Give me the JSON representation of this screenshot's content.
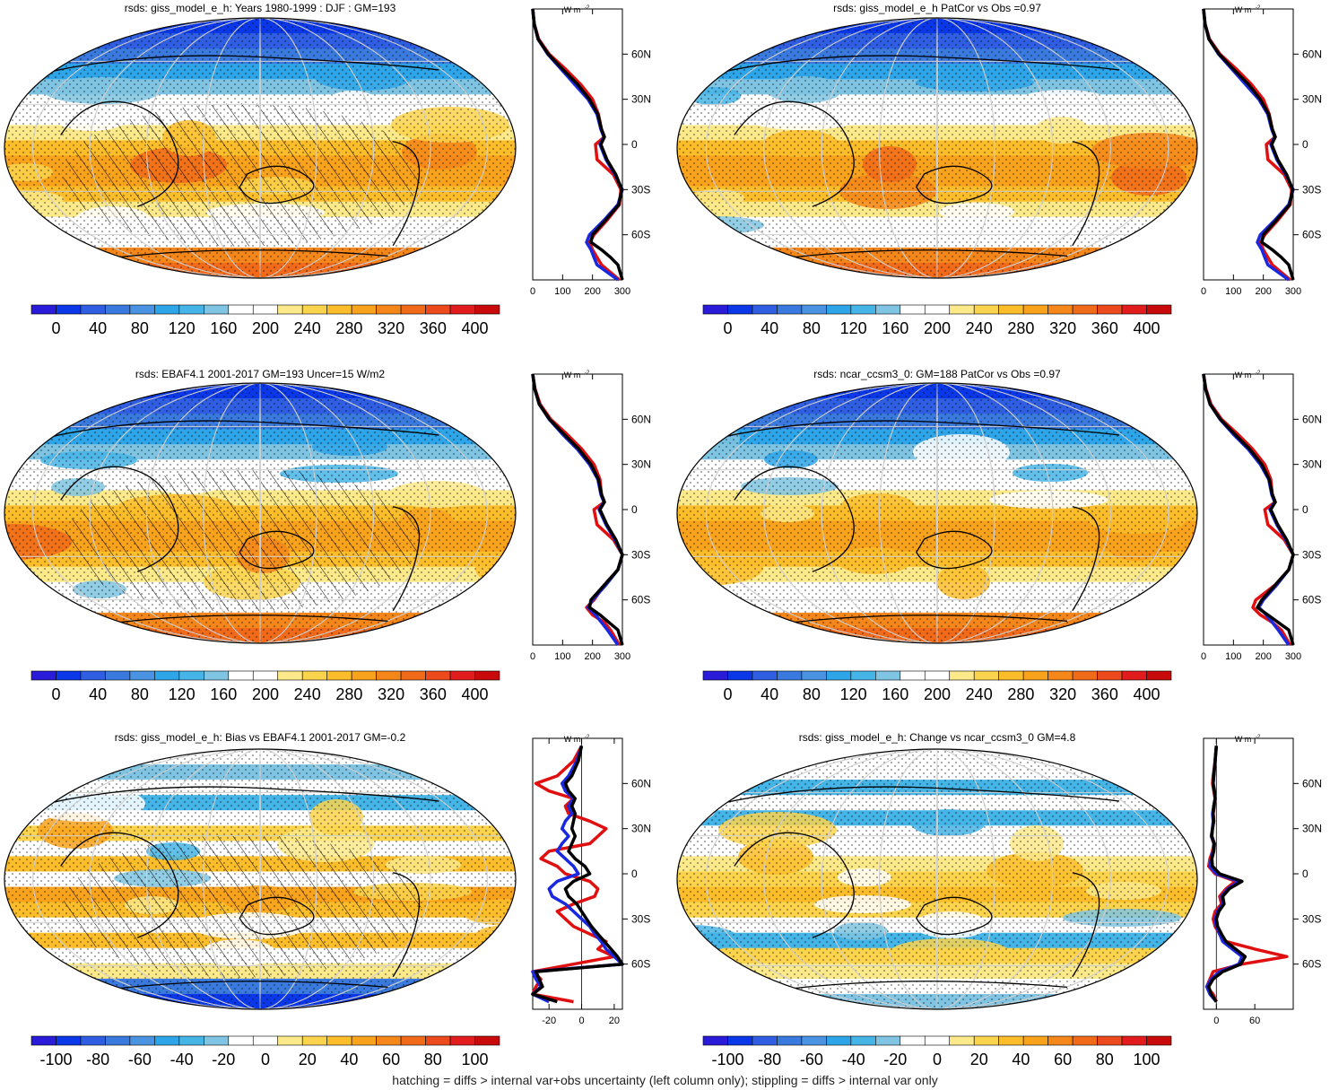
{
  "footer_note": "hatching = diffs > internal var+obs uncertainty (left column only); stippling = diffs > internal var only",
  "units_label": "W m",
  "units_exp": "-2",
  "colors": {
    "scale": [
      "#2a1bd8",
      "#0a38e8",
      "#2f5ee2",
      "#3a7ade",
      "#4a92e2",
      "#2ea5e8",
      "#45b4e6",
      "#7fc4e2",
      "#ffffff",
      "#ffffff",
      "#fce98a",
      "#fbd34c",
      "#fbbd2a",
      "#f9a21c",
      "#f5861a",
      "#f16a1a",
      "#ec4a1c",
      "#e21c1c",
      "#c80a0a"
    ],
    "obs": "#e01010",
    "model": "#1a28e0",
    "ref": "#000000"
  },
  "chart_data": [
    {
      "type": "heatmap",
      "title": "rsds: giss_model_e_h: Years 1980-1999 : DJF : GM=193",
      "colorbar_ticks": [
        "0",
        "40",
        "80",
        "120",
        "160",
        "200",
        "240",
        "280",
        "320",
        "360",
        "400"
      ],
      "zonal_profile": {
        "xticks": [
          "0",
          "100",
          "200",
          "300"
        ],
        "xlim": [
          0,
          300
        ],
        "yticks": [
          "60N",
          "30N",
          "0",
          "30S",
          "60S"
        ],
        "lat": [
          90,
          80,
          70,
          60,
          50,
          40,
          30,
          20,
          10,
          5,
          0,
          -10,
          -20,
          -30,
          -40,
          -50,
          -60,
          -65,
          -70,
          -75,
          -80,
          -90
        ],
        "obs": [
          0,
          5,
          20,
          55,
          110,
          160,
          200,
          220,
          230,
          240,
          210,
          215,
          270,
          295,
          290,
          250,
          205,
          190,
          200,
          215,
          230,
          290
        ],
        "model": [
          0,
          5,
          18,
          50,
          95,
          140,
          185,
          215,
          228,
          238,
          225,
          245,
          275,
          300,
          285,
          240,
          190,
          180,
          195,
          205,
          215,
          285
        ],
        "ref": [
          0,
          5,
          18,
          52,
          100,
          150,
          190,
          218,
          230,
          240,
          228,
          248,
          278,
          298,
          288,
          245,
          200,
          195,
          230,
          260,
          285,
          300
        ]
      }
    },
    {
      "type": "heatmap",
      "title": "rsds: giss_model_e_h PatCor vs Obs =0.97",
      "colorbar_ticks": [
        "0",
        "40",
        "80",
        "120",
        "160",
        "200",
        "240",
        "280",
        "320",
        "360",
        "400"
      ],
      "zonal_profile": {
        "xticks": [
          "0",
          "100",
          "200",
          "300"
        ],
        "xlim": [
          0,
          300
        ],
        "yticks": [
          "60N",
          "30N",
          "0",
          "30S",
          "60S"
        ],
        "lat": [
          90,
          80,
          70,
          60,
          50,
          40,
          30,
          20,
          10,
          5,
          0,
          -10,
          -20,
          -30,
          -40,
          -50,
          -60,
          -65,
          -70,
          -75,
          -80,
          -90
        ],
        "obs": [
          0,
          5,
          20,
          55,
          110,
          160,
          200,
          220,
          230,
          240,
          210,
          215,
          270,
          295,
          290,
          250,
          205,
          190,
          200,
          215,
          230,
          290
        ],
        "model": [
          0,
          5,
          18,
          50,
          95,
          140,
          185,
          215,
          228,
          238,
          225,
          245,
          275,
          300,
          285,
          240,
          190,
          180,
          195,
          205,
          215,
          285
        ],
        "ref": [
          0,
          5,
          18,
          52,
          100,
          150,
          190,
          218,
          230,
          240,
          228,
          248,
          278,
          298,
          288,
          245,
          200,
          195,
          230,
          260,
          285,
          300
        ]
      }
    },
    {
      "type": "heatmap",
      "title": "rsds: EBAF4.1 2001-2017 GM=193 Uncer=15 W/m2",
      "colorbar_ticks": [
        "0",
        "40",
        "80",
        "120",
        "160",
        "200",
        "240",
        "280",
        "320",
        "360",
        "400"
      ],
      "zonal_profile": {
        "xticks": [
          "0",
          "100",
          "200",
          "300"
        ],
        "xlim": [
          0,
          300
        ],
        "yticks": [
          "60N",
          "30N",
          "0",
          "30S",
          "60S"
        ],
        "lat": [
          90,
          80,
          70,
          60,
          50,
          40,
          30,
          20,
          10,
          5,
          0,
          -10,
          -20,
          -30,
          -40,
          -50,
          -60,
          -65,
          -70,
          -75,
          -80,
          -90
        ],
        "obs": [
          0,
          8,
          25,
          60,
          115,
          165,
          205,
          225,
          230,
          240,
          205,
          215,
          270,
          300,
          285,
          240,
          205,
          180,
          200,
          240,
          260,
          290
        ],
        "model": [
          0,
          7,
          22,
          55,
          100,
          150,
          190,
          218,
          228,
          238,
          222,
          245,
          275,
          300,
          285,
          245,
          200,
          185,
          210,
          230,
          250,
          285
        ],
        "ref": [
          0,
          7,
          22,
          56,
          105,
          155,
          195,
          220,
          230,
          240,
          225,
          248,
          278,
          300,
          285,
          240,
          195,
          190,
          225,
          255,
          285,
          300
        ]
      }
    },
    {
      "type": "heatmap",
      "title": "rsds: ncar_ccsm3_0: GM=188 PatCor vs Obs =0.97",
      "colorbar_ticks": [
        "0",
        "40",
        "80",
        "120",
        "160",
        "200",
        "240",
        "280",
        "320",
        "360",
        "400"
      ],
      "zonal_profile": {
        "xticks": [
          "0",
          "100",
          "200",
          "300"
        ],
        "xlim": [
          0,
          300
        ],
        "yticks": [
          "60N",
          "30N",
          "0",
          "30S",
          "60S"
        ],
        "lat": [
          90,
          80,
          70,
          60,
          50,
          40,
          30,
          20,
          10,
          5,
          0,
          -10,
          -20,
          -30,
          -40,
          -50,
          -60,
          -65,
          -70,
          -75,
          -80,
          -90
        ],
        "obs": [
          0,
          8,
          25,
          60,
          115,
          165,
          205,
          225,
          230,
          240,
          205,
          215,
          270,
          300,
          285,
          240,
          175,
          165,
          190,
          230,
          260,
          290
        ],
        "model": [
          0,
          7,
          22,
          55,
          100,
          150,
          190,
          218,
          228,
          238,
          222,
          245,
          275,
          300,
          285,
          245,
          200,
          185,
          210,
          230,
          250,
          285
        ],
        "ref": [
          0,
          7,
          22,
          56,
          105,
          155,
          195,
          220,
          230,
          240,
          225,
          248,
          278,
          300,
          285,
          240,
          195,
          180,
          215,
          250,
          285,
          300
        ]
      }
    },
    {
      "type": "heatmap",
      "title": "rsds: giss_model_e_h: Bias vs EBAF4.1 2001-2017 GM=-0.2",
      "colorbar_ticks": [
        "-100",
        "-80",
        "-60",
        "-40",
        "-20",
        "0",
        "20",
        "40",
        "60",
        "80",
        "100"
      ],
      "zonal_profile": {
        "xticks": [
          "-20",
          "0",
          "20"
        ],
        "xlim": [
          -30,
          25
        ],
        "yticks": [
          "60N",
          "30N",
          "0",
          "30S",
          "60S"
        ],
        "lat": [
          85,
          75,
          65,
          60,
          55,
          50,
          45,
          40,
          35,
          30,
          25,
          20,
          15,
          10,
          5,
          0,
          -5,
          -10,
          -15,
          -20,
          -25,
          -30,
          -35,
          -40,
          -45,
          -50,
          -55,
          -60,
          -65,
          -70,
          -75,
          -80,
          -85
        ],
        "obs": [
          0,
          -5,
          -15,
          -28,
          -20,
          -5,
          -10,
          -8,
          5,
          15,
          10,
          5,
          -20,
          -25,
          -15,
          -10,
          5,
          10,
          8,
          -5,
          -15,
          -10,
          -5,
          5,
          15,
          10,
          20,
          -5,
          -30,
          -25,
          -28,
          -30,
          -5
        ],
        "model": [
          0,
          -3,
          -8,
          -12,
          -10,
          -5,
          -8,
          -6,
          -10,
          -12,
          -8,
          -12,
          -15,
          -10,
          -5,
          -2,
          -15,
          -20,
          -18,
          -10,
          -5,
          0,
          5,
          8,
          12,
          15,
          20,
          25,
          -30,
          -28,
          -25,
          -30,
          -20
        ],
        "ref": [
          0,
          -2,
          -6,
          -10,
          -8,
          -4,
          -6,
          -4,
          -5,
          -6,
          -4,
          -6,
          -8,
          -4,
          2,
          5,
          -5,
          -10,
          -8,
          -3,
          0,
          3,
          6,
          10,
          14,
          18,
          22,
          26,
          -28,
          -26,
          -24,
          -30,
          -15
        ]
      }
    },
    {
      "type": "heatmap",
      "title": "rsds: giss_model_e_h: Change vs ncar_ccsm3_0 GM=4.8",
      "colorbar_ticks": [
        "-100",
        "-80",
        "-60",
        "-40",
        "-20",
        "0",
        "20",
        "40",
        "60",
        "80",
        "100"
      ],
      "zonal_profile": {
        "xticks": [
          "0",
          "60"
        ],
        "xlim": [
          -20,
          120
        ],
        "yticks": [
          "60N",
          "30N",
          "0",
          "30S",
          "60S"
        ],
        "lat": [
          85,
          75,
          65,
          60,
          55,
          50,
          45,
          40,
          35,
          30,
          25,
          20,
          15,
          10,
          5,
          0,
          -5,
          -10,
          -15,
          -20,
          -25,
          -30,
          -35,
          -40,
          -45,
          -50,
          -55,
          -60,
          -65,
          -70,
          -75,
          -80,
          -85
        ],
        "obs": [
          0,
          -2,
          -5,
          -6,
          -4,
          -2,
          -3,
          -5,
          -4,
          -6,
          -8,
          -4,
          -6,
          -10,
          -12,
          -2,
          30,
          15,
          5,
          8,
          -2,
          -5,
          -2,
          5,
          15,
          60,
          110,
          40,
          -5,
          -10,
          -15,
          -5,
          0
        ],
        "model": [
          0,
          -2,
          -4,
          -5,
          -3,
          -2,
          -4,
          -6,
          -5,
          -6,
          -8,
          -3,
          -5,
          -8,
          -10,
          0,
          35,
          18,
          8,
          10,
          2,
          -2,
          0,
          5,
          10,
          25,
          40,
          35,
          5,
          -8,
          -15,
          -10,
          0
        ],
        "ref": [
          0,
          -2,
          -4,
          -5,
          -3,
          -2,
          -4,
          -5,
          -4,
          -6,
          -7,
          -3,
          -4,
          -7,
          -6,
          5,
          40,
          20,
          10,
          12,
          4,
          0,
          2,
          8,
          15,
          30,
          45,
          38,
          10,
          -5,
          -12,
          -8,
          0
        ]
      }
    }
  ]
}
